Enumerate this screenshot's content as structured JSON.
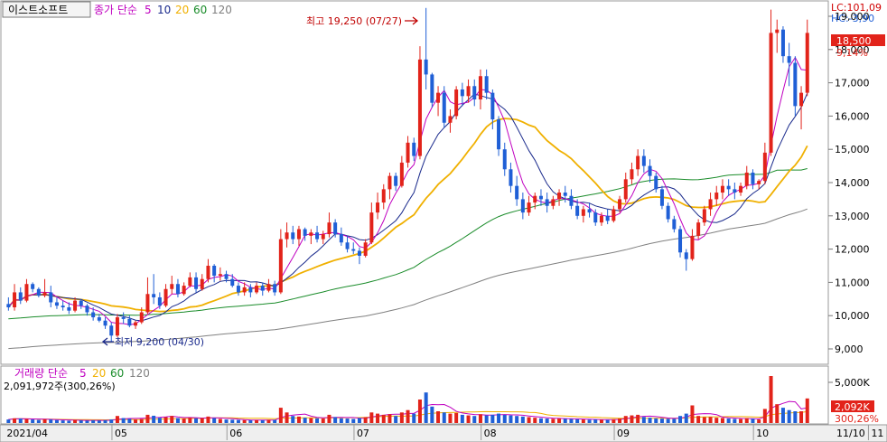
{
  "header": {
    "stock_name": "이스트소프트",
    "ma_label": "종가 단순",
    "ma_periods": [
      "5",
      "10",
      "20",
      "60",
      "120"
    ],
    "lc": "LC:101,09",
    "hc": "HC:-3,90"
  },
  "price_tag": {
    "price": "18,500",
    "change_pct": "9,14%"
  },
  "annotations": {
    "high": "최고 19,250 (07/27)",
    "low": "최저 9,200 (04/30)"
  },
  "volume_header": {
    "ma_label": "거래량 단순",
    "ma_periods": [
      "5",
      "20",
      "60",
      "120"
    ],
    "value_text": "2,091,972주(300,26%)"
  },
  "volume_tag": {
    "value": "2,092K",
    "pct": "300,26%"
  },
  "colors": {
    "up": "#e2231a",
    "down": "#1f5fd6",
    "ma5": "#c000c0",
    "ma10": "#1a2a8c",
    "ma20": "#f0b000",
    "ma60": "#1a8c2a",
    "ma120": "#808080"
  },
  "chart_data": {
    "type": "candlestick",
    "price_axis": {
      "min": 9000,
      "max": 19000,
      "ticks": [
        "9,000",
        "10,000",
        "11,000",
        "12,000",
        "13,000",
        "14,000",
        "15,000",
        "16,000",
        "17,000",
        "18,000",
        "19,000"
      ]
    },
    "volume_axis": {
      "ticks": [
        "5,000K"
      ]
    },
    "x_labels": [
      "2021/04",
      "05",
      "06",
      "07",
      "08",
      "09",
      "10",
      "11",
      "11/10"
    ],
    "month_index": [
      0,
      18,
      37,
      58,
      79,
      101,
      124,
      143
    ],
    "candles": [
      [
        10350,
        10550,
        10150,
        10250,
        300
      ],
      [
        10250,
        10950,
        10150,
        10700,
        400
      ],
      [
        10700,
        10850,
        10350,
        10450,
        380
      ],
      [
        10450,
        11100,
        10400,
        10950,
        350
      ],
      [
        10950,
        11000,
        10700,
        10800,
        300
      ],
      [
        10800,
        10850,
        10550,
        10600,
        260
      ],
      [
        10600,
        11100,
        10550,
        10700,
        320
      ],
      [
        10700,
        10900,
        10250,
        10400,
        300
      ],
      [
        10400,
        10550,
        10200,
        10300,
        250
      ],
      [
        10300,
        10450,
        10150,
        10250,
        220
      ],
      [
        10250,
        10400,
        10050,
        10150,
        200
      ],
      [
        10150,
        10550,
        10100,
        10450,
        260
      ],
      [
        10450,
        10500,
        10200,
        10300,
        220
      ],
      [
        10300,
        10350,
        10000,
        10100,
        200
      ],
      [
        10100,
        10250,
        9850,
        9950,
        230
      ],
      [
        9950,
        10050,
        9800,
        9850,
        210
      ],
      [
        9850,
        9950,
        9600,
        9700,
        240
      ],
      [
        9700,
        9800,
        9200,
        9400,
        300
      ],
      [
        9400,
        10050,
        9350,
        9950,
        600
      ],
      [
        9950,
        10100,
        9750,
        9900,
        420
      ],
      [
        9900,
        10000,
        9650,
        9700,
        360
      ],
      [
        9700,
        9850,
        9600,
        9800,
        300
      ],
      [
        9800,
        10250,
        9750,
        10100,
        350
      ],
      [
        10100,
        11150,
        10050,
        10650,
        700
      ],
      [
        10650,
        11250,
        10350,
        10550,
        620
      ],
      [
        10550,
        10700,
        10200,
        10300,
        450
      ],
      [
        10300,
        10950,
        10250,
        10800,
        500
      ],
      [
        10800,
        11200,
        10650,
        10950,
        600
      ],
      [
        10950,
        11100,
        10550,
        10650,
        420
      ],
      [
        10650,
        11000,
        10600,
        10900,
        380
      ],
      [
        10900,
        11300,
        10850,
        11150,
        450
      ],
      [
        11150,
        11300,
        10700,
        10800,
        400
      ],
      [
        10800,
        11250,
        10750,
        11100,
        420
      ],
      [
        11100,
        11700,
        11000,
        11500,
        550
      ],
      [
        11500,
        11550,
        11000,
        11200,
        420
      ],
      [
        11200,
        11450,
        11050,
        11250,
        350
      ],
      [
        11250,
        11350,
        11000,
        11100,
        300
      ],
      [
        11100,
        11250,
        10850,
        10900,
        280
      ],
      [
        10900,
        11000,
        10600,
        10700,
        260
      ],
      [
        10700,
        11000,
        10600,
        10850,
        250
      ],
      [
        10850,
        10950,
        10550,
        10700,
        230
      ],
      [
        10700,
        11000,
        10650,
        10900,
        250
      ],
      [
        10900,
        11000,
        10600,
        10750,
        230
      ],
      [
        10750,
        11100,
        10700,
        10950,
        280
      ],
      [
        10950,
        11050,
        10600,
        10700,
        260
      ],
      [
        10700,
        12600,
        10650,
        12300,
        1300
      ],
      [
        12300,
        12800,
        12050,
        12500,
        900
      ],
      [
        12500,
        12700,
        12150,
        12300,
        600
      ],
      [
        12300,
        12700,
        12100,
        12600,
        550
      ],
      [
        12600,
        12650,
        12250,
        12400,
        450
      ],
      [
        12400,
        12600,
        12150,
        12500,
        420
      ],
      [
        12500,
        12700,
        12200,
        12300,
        400
      ],
      [
        12300,
        12550,
        12150,
        12450,
        380
      ],
      [
        12450,
        13100,
        12350,
        12800,
        700
      ],
      [
        12800,
        12900,
        12350,
        12450,
        500
      ],
      [
        12450,
        12650,
        12100,
        12200,
        400
      ],
      [
        12200,
        12400,
        11900,
        12000,
        380
      ],
      [
        12000,
        12200,
        11850,
        11950,
        350
      ],
      [
        11950,
        12050,
        11550,
        11800,
        420
      ],
      [
        11800,
        12300,
        11750,
        12200,
        500
      ],
      [
        12200,
        13400,
        12150,
        13100,
        900
      ],
      [
        13100,
        13700,
        12900,
        13400,
        800
      ],
      [
        13400,
        13950,
        13200,
        13800,
        700
      ],
      [
        13800,
        14300,
        13500,
        14200,
        750
      ],
      [
        14200,
        14300,
        13750,
        13900,
        600
      ],
      [
        13900,
        14800,
        13850,
        14600,
        900
      ],
      [
        14600,
        15400,
        14450,
        15200,
        1100
      ],
      [
        15200,
        15350,
        14650,
        14800,
        800
      ],
      [
        14800,
        18100,
        14700,
        17700,
        2000
      ],
      [
        17700,
        19250,
        16800,
        17250,
        2600
      ],
      [
        17250,
        17300,
        16250,
        16400,
        1400
      ],
      [
        16400,
        16900,
        16000,
        16700,
        1000
      ],
      [
        16700,
        16900,
        15650,
        15800,
        900
      ],
      [
        15800,
        16200,
        15500,
        16000,
        800
      ],
      [
        16000,
        16900,
        15900,
        16800,
        850
      ],
      [
        16800,
        17000,
        16300,
        16600,
        700
      ],
      [
        16600,
        17100,
        16400,
        16900,
        650
      ],
      [
        16900,
        17100,
        16300,
        16500,
        600
      ],
      [
        16500,
        17400,
        16200,
        17200,
        750
      ],
      [
        17200,
        17400,
        16500,
        16700,
        650
      ],
      [
        16700,
        16800,
        15600,
        15900,
        700
      ],
      [
        15900,
        16000,
        14800,
        15000,
        800
      ],
      [
        15000,
        15200,
        14200,
        14400,
        700
      ],
      [
        14400,
        14600,
        13700,
        13900,
        650
      ],
      [
        13900,
        14200,
        13300,
        13500,
        600
      ],
      [
        13500,
        13700,
        12900,
        13100,
        550
      ],
      [
        13100,
        13600,
        13000,
        13400,
        500
      ],
      [
        13400,
        13700,
        13200,
        13600,
        450
      ],
      [
        13600,
        13800,
        13300,
        13500,
        400
      ],
      [
        13500,
        13700,
        13100,
        13300,
        380
      ],
      [
        13300,
        13600,
        13200,
        13500,
        360
      ],
      [
        13500,
        13800,
        13300,
        13700,
        380
      ],
      [
        13700,
        13900,
        13400,
        13600,
        360
      ],
      [
        13600,
        13800,
        13200,
        13300,
        340
      ],
      [
        13300,
        13500,
        12900,
        13000,
        320
      ],
      [
        13000,
        13300,
        12800,
        13200,
        300
      ],
      [
        13200,
        13400,
        12950,
        13100,
        280
      ],
      [
        13100,
        13200,
        12700,
        12800,
        300
      ],
      [
        12800,
        13100,
        12700,
        13000,
        280
      ],
      [
        13000,
        13200,
        12750,
        12850,
        260
      ],
      [
        12850,
        13300,
        12800,
        13200,
        320
      ],
      [
        13200,
        13600,
        13100,
        13500,
        380
      ],
      [
        13500,
        14300,
        13400,
        14100,
        600
      ],
      [
        14100,
        14600,
        13950,
        14400,
        650
      ],
      [
        14400,
        15000,
        14200,
        14800,
        700
      ],
      [
        14800,
        15000,
        14300,
        14500,
        520
      ],
      [
        14500,
        14700,
        14000,
        14200,
        450
      ],
      [
        14200,
        14300,
        13700,
        13800,
        400
      ],
      [
        13800,
        13900,
        13200,
        13300,
        380
      ],
      [
        13300,
        13400,
        12800,
        12900,
        360
      ],
      [
        12900,
        13000,
        12500,
        12600,
        360
      ],
      [
        12600,
        12700,
        11750,
        11900,
        600
      ],
      [
        11900,
        12000,
        11350,
        11700,
        800
      ],
      [
        11700,
        12600,
        11650,
        12400,
        1500
      ],
      [
        12400,
        12900,
        12300,
        12800,
        600
      ],
      [
        12800,
        13300,
        12700,
        13200,
        500
      ],
      [
        13200,
        13700,
        13000,
        13500,
        520
      ],
      [
        13500,
        13900,
        13300,
        13700,
        450
      ],
      [
        13700,
        14100,
        13500,
        13900,
        430
      ],
      [
        13900,
        14100,
        13600,
        13800,
        380
      ],
      [
        13800,
        14000,
        13500,
        13700,
        350
      ],
      [
        13700,
        14000,
        13600,
        13900,
        340
      ],
      [
        13900,
        14500,
        13800,
        14300,
        420
      ],
      [
        14300,
        14400,
        13800,
        13950,
        360
      ],
      [
        13950,
        14100,
        13800,
        14050,
        300
      ],
      [
        14050,
        15200,
        13950,
        14900,
        1200
      ],
      [
        14900,
        19200,
        14800,
        18500,
        4000
      ],
      [
        18500,
        18900,
        17900,
        18600,
        1600
      ],
      [
        18600,
        18700,
        17600,
        17800,
        1300
      ],
      [
        17800,
        18200,
        16900,
        17600,
        1100
      ],
      [
        17600,
        17800,
        16000,
        16300,
        1000
      ],
      [
        16300,
        16900,
        15600,
        16700,
        1000
      ],
      [
        16700,
        18900,
        16600,
        18500,
        2092
      ]
    ],
    "high_index": 69,
    "low_index": 17
  }
}
